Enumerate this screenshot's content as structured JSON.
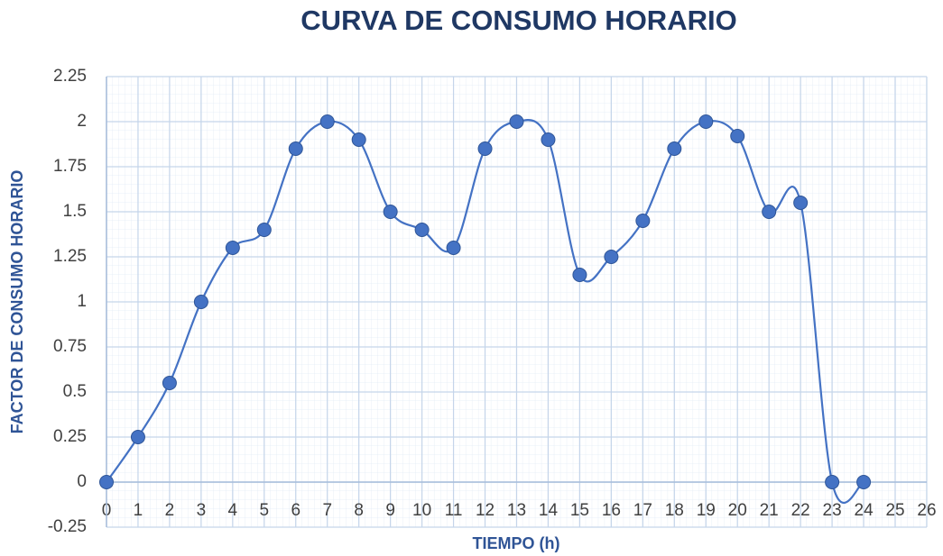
{
  "chart_data": {
    "type": "line",
    "title": "CURVA DE CONSUMO HORARIO",
    "x_label": "TIEMPO (h)",
    "y_label": "FACTOR DE CONSUMO HORARIO",
    "x": [
      0,
      1,
      2,
      3,
      4,
      5,
      6,
      7,
      8,
      9,
      10,
      11,
      12,
      13,
      14,
      15,
      16,
      17,
      18,
      19,
      20,
      21,
      22,
      23,
      24
    ],
    "values": [
      0,
      0.25,
      0.55,
      1.0,
      1.3,
      1.4,
      1.85,
      2.0,
      1.9,
      1.5,
      1.4,
      1.3,
      1.85,
      2.0,
      1.9,
      1.15,
      1.25,
      1.45,
      1.85,
      2.0,
      1.92,
      1.5,
      1.55,
      0,
      0
    ],
    "color": "#4472c4",
    "smooth": true,
    "grid": true,
    "xlim": [
      0,
      26
    ],
    "xticks": [
      0,
      1,
      2,
      3,
      4,
      5,
      6,
      7,
      8,
      9,
      10,
      11,
      12,
      13,
      14,
      15,
      16,
      17,
      18,
      19,
      20,
      21,
      22,
      23,
      24,
      25,
      26
    ],
    "ylim": [
      -0.25,
      2.25
    ],
    "yticks": [
      -0.25,
      0,
      0.25,
      0.5,
      0.75,
      1,
      1.25,
      1.5,
      1.75,
      2,
      2.25
    ]
  }
}
